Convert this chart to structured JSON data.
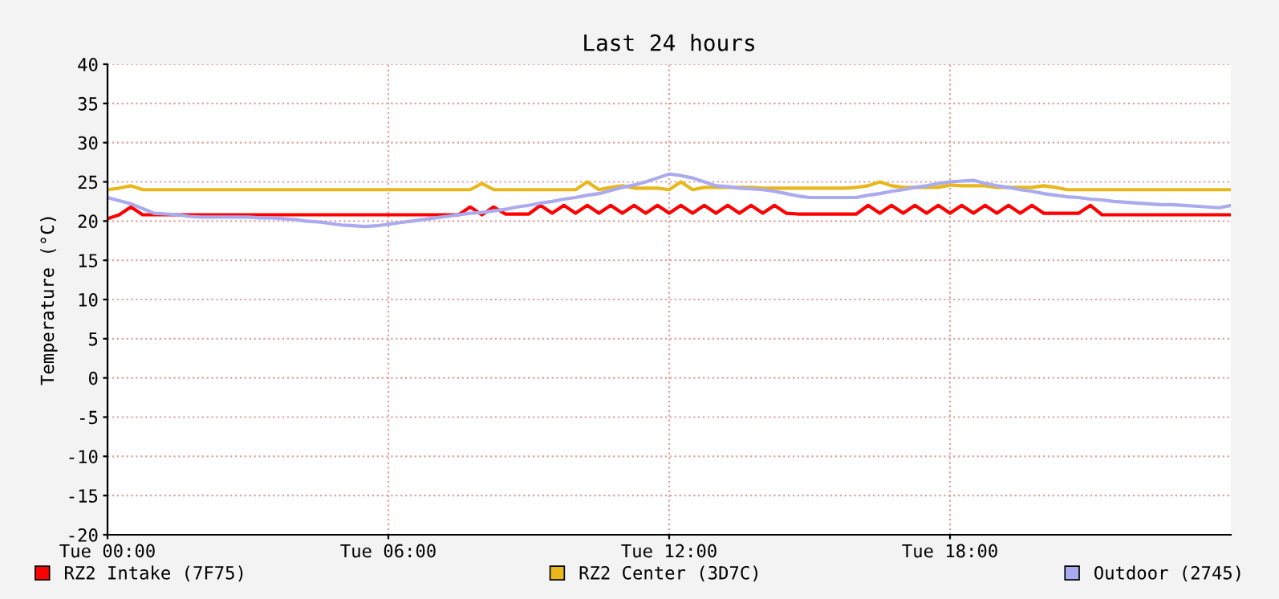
{
  "chart_data": {
    "type": "line",
    "title": "Last 24 hours",
    "ylabel": "Temperature (°C)",
    "categories": [
      "Tue 00:00",
      null,
      null,
      null,
      null,
      null,
      null,
      null,
      null,
      null,
      null,
      null,
      null,
      null,
      null,
      null,
      null,
      null,
      null,
      null,
      null,
      null,
      null,
      null,
      "Tue 06:00",
      null,
      null,
      null,
      null,
      null,
      null,
      null,
      null,
      null,
      null,
      null,
      null,
      null,
      null,
      null,
      null,
      null,
      null,
      null,
      null,
      null,
      null,
      null,
      "Tue 12:00",
      null,
      null,
      null,
      null,
      null,
      null,
      null,
      null,
      null,
      null,
      null,
      null,
      null,
      null,
      null,
      null,
      null,
      null,
      null,
      null,
      null,
      null,
      null,
      "Tue 18:00",
      null,
      null,
      null,
      null,
      null,
      null,
      null,
      null,
      null,
      null,
      null,
      null,
      null,
      null,
      null,
      null,
      null,
      null,
      null,
      null,
      null,
      null,
      null,
      null
    ],
    "ylim": [
      -20,
      40
    ],
    "yticks": [
      -20,
      -15,
      -10,
      -5,
      0,
      5,
      10,
      15,
      20,
      25,
      30,
      35,
      40
    ],
    "grid": true,
    "legend": "bottom",
    "line_style": "solid",
    "marker": "none",
    "series": [
      {
        "name": "RZ2 Intake (7F75)",
        "color": "#ff0000",
        "values": [
          20.3,
          20.8,
          21.8,
          20.8,
          20.8,
          20.8,
          20.8,
          20.8,
          20.8,
          20.8,
          20.8,
          20.8,
          20.8,
          20.8,
          20.8,
          20.8,
          20.8,
          20.8,
          20.8,
          20.8,
          20.8,
          20.8,
          20.8,
          20.8,
          20.8,
          20.8,
          20.8,
          20.8,
          20.8,
          20.8,
          20.8,
          21.8,
          20.8,
          21.8,
          20.9,
          20.9,
          20.9,
          22,
          21,
          22,
          21,
          22,
          21,
          22,
          21,
          22,
          21,
          22,
          21,
          22,
          21,
          22,
          21,
          22,
          21,
          22,
          21,
          22,
          21,
          20.9,
          20.9,
          20.9,
          20.9,
          20.9,
          20.9,
          22,
          21,
          22,
          21,
          22,
          21,
          22,
          21,
          22,
          21,
          22,
          21,
          22,
          21,
          22,
          21,
          21,
          21,
          21,
          22,
          20.8,
          20.8,
          20.8,
          20.8,
          20.8,
          20.8,
          20.8,
          20.8,
          20.8,
          20.8,
          20.8,
          20.8
        ]
      },
      {
        "name": "RZ2 Center (3D7C)",
        "color": "#e8b71c",
        "values": [
          24,
          24.2,
          24.5,
          24,
          24,
          24,
          24,
          24,
          24,
          24,
          24,
          24,
          24,
          24,
          24,
          24,
          24,
          24,
          24,
          24,
          24,
          24,
          24,
          24,
          24,
          24,
          24,
          24,
          24,
          24,
          24,
          24,
          24.8,
          24,
          24,
          24,
          24,
          24,
          24,
          24,
          24,
          25,
          24,
          24.3,
          24.5,
          24.2,
          24.2,
          24.2,
          24,
          25,
          24,
          24.3,
          24.3,
          24.3,
          24.3,
          24.3,
          24.2,
          24.2,
          24.2,
          24.2,
          24.2,
          24.2,
          24.2,
          24.2,
          24.3,
          24.5,
          25,
          24.5,
          24.3,
          24.3,
          24.3,
          24.3,
          24.6,
          24.5,
          24.5,
          24.5,
          24.3,
          24.3,
          24.3,
          24.3,
          24.5,
          24.3,
          24,
          24,
          24,
          24,
          24,
          24,
          24,
          24,
          24,
          24,
          24,
          24,
          24,
          24,
          24
        ]
      },
      {
        "name": "Outdoor (2745)",
        "color": "#aaaaee",
        "values": [
          23,
          22.6,
          22.2,
          21.6,
          21,
          20.9,
          20.8,
          20.6,
          20.5,
          20.5,
          20.5,
          20.5,
          20.5,
          20.4,
          20.4,
          20.3,
          20.2,
          20,
          19.9,
          19.7,
          19.5,
          19.4,
          19.3,
          19.4,
          19.6,
          19.8,
          20,
          20.2,
          20.4,
          20.6,
          20.8,
          21,
          21.1,
          21.3,
          21.5,
          21.8,
          22,
          22.3,
          22.5,
          22.8,
          23,
          23.3,
          23.5,
          23.9,
          24.3,
          24.6,
          25,
          25.5,
          26,
          25.8,
          25.5,
          25,
          24.5,
          24.4,
          24.2,
          24.1,
          24,
          23.8,
          23.5,
          23.2,
          23,
          23,
          23,
          23,
          23,
          23.3,
          23.5,
          23.8,
          24,
          24.3,
          24.5,
          24.8,
          25,
          25.1,
          25.2,
          24.8,
          24.5,
          24.3,
          24,
          23.8,
          23.5,
          23.3,
          23.1,
          23,
          22.8,
          22.7,
          22.5,
          22.4,
          22.3,
          22.2,
          22.1,
          22.1,
          22,
          21.9,
          21.8,
          21.7,
          22
        ]
      }
    ]
  }
}
